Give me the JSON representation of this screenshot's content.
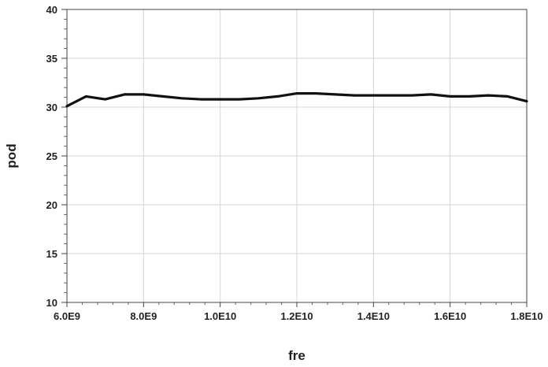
{
  "chart_data": {
    "type": "line",
    "xlabel": "fre",
    "ylabel": "pod",
    "xlim": [
      6000000000,
      18000000000
    ],
    "ylim": [
      10,
      40
    ],
    "xticks": [
      6000000000,
      8000000000,
      10000000000,
      12000000000,
      14000000000,
      16000000000,
      18000000000
    ],
    "xtick_labels": [
      "6.0E9",
      "8.0E9",
      "1.0E10",
      "1.2E10",
      "1.4E10",
      "1.6E10",
      "1.8E10"
    ],
    "yticks": [
      10,
      15,
      20,
      25,
      30,
      35,
      40
    ],
    "ytick_labels": [
      "10",
      "15",
      "20",
      "25",
      "30",
      "35",
      "40"
    ],
    "grid": true,
    "series": [
      {
        "x": [
          6000000000,
          6500000000,
          7000000000,
          7500000000,
          8000000000,
          8500000000,
          9000000000,
          9500000000,
          10000000000,
          10500000000,
          11000000000,
          11500000000,
          12000000000,
          12500000000,
          13000000000,
          13500000000,
          14000000000,
          14500000000,
          15000000000,
          15500000000,
          16000000000,
          16500000000,
          17000000000,
          17500000000,
          18000000000
        ],
        "values": [
          30.1,
          31.1,
          30.8,
          31.3,
          31.3,
          31.1,
          30.9,
          30.8,
          30.8,
          30.8,
          30.9,
          31.1,
          31.4,
          31.4,
          31.3,
          31.2,
          31.2,
          31.2,
          31.2,
          31.3,
          31.1,
          31.1,
          31.2,
          31.1,
          30.6
        ],
        "color": "#111111"
      }
    ]
  }
}
